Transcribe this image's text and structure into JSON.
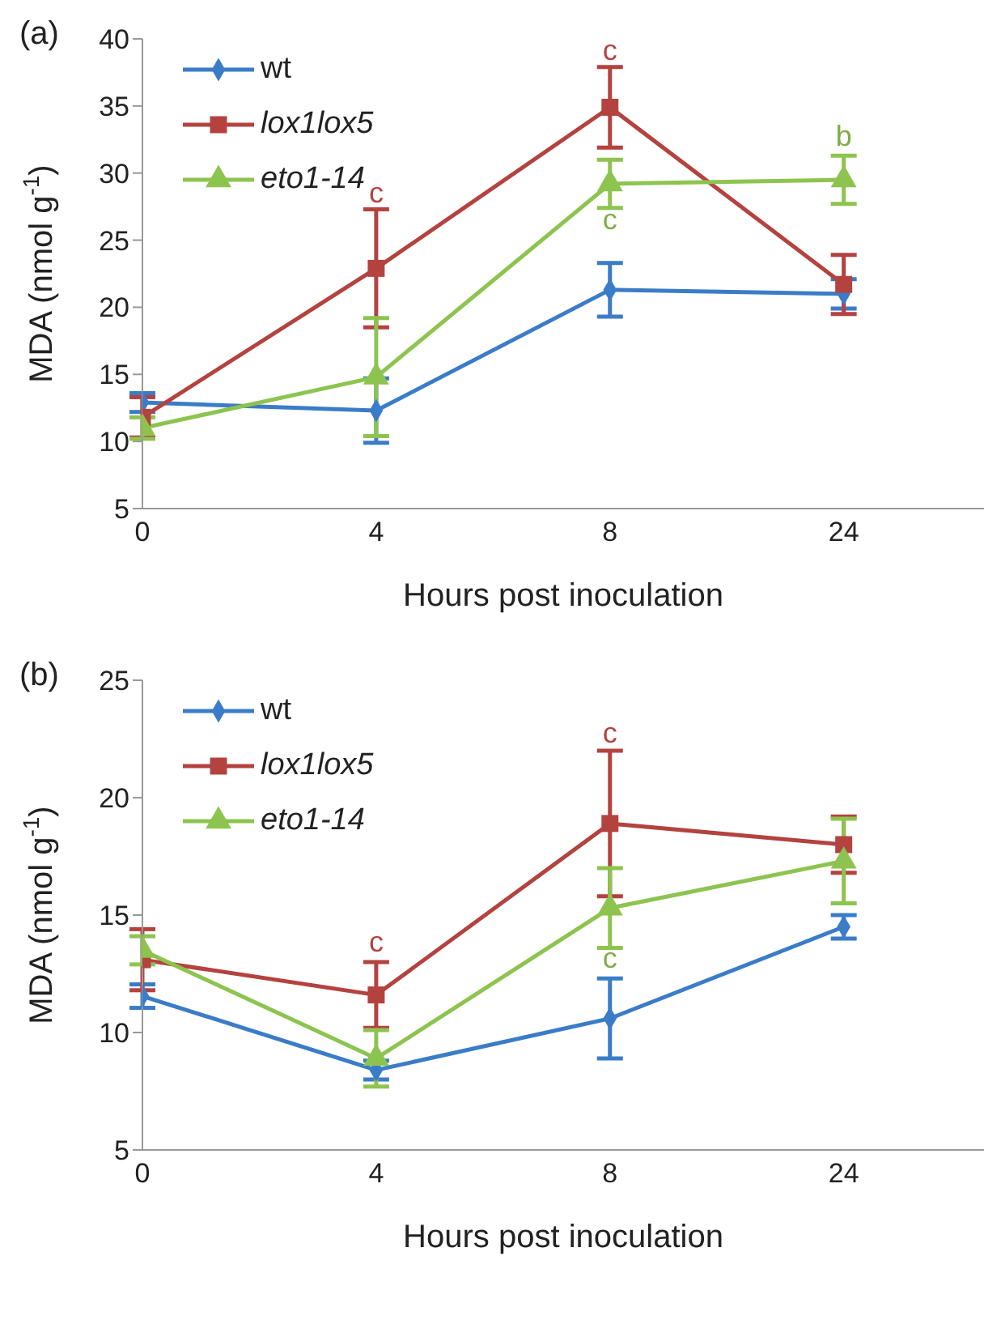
{
  "chart_data": [
    {
      "type": "line",
      "title": "(a)",
      "xlabel": "Hours post inoculation",
      "ylabel": "MDA (nmol g$^{-1}$)",
      "categories": [
        "0",
        "4",
        "8",
        "24"
      ],
      "ylim": [
        5,
        40
      ],
      "yticks": [
        5,
        10,
        15,
        20,
        25,
        30,
        35,
        40
      ],
      "grid": false,
      "legend": "top left",
      "series": [
        {
          "name": "wt",
          "color": "#3b7cc8",
          "marker": "diamond",
          "values": [
            12.9,
            12.3,
            21.3,
            21.0
          ],
          "errors": [
            0.7,
            2.4,
            2.0,
            1.1
          ]
        },
        {
          "name": "lox1lox5",
          "color": "#b4423f",
          "marker": "square",
          "values": [
            11.8,
            22.9,
            34.9,
            21.7
          ],
          "errors": [
            1.5,
            4.4,
            3.0,
            2.2
          ]
        },
        {
          "name": "eto1-14",
          "color": "#8dc44f",
          "marker": "triangle",
          "values": [
            11.0,
            14.8,
            29.2,
            29.5
          ],
          "errors": [
            0.8,
            4.4,
            1.8,
            1.8
          ]
        }
      ],
      "annotations": [
        "c",
        "c",
        "c",
        "b"
      ]
    },
    {
      "type": "line",
      "title": "(b)",
      "xlabel": "Hours post inoculation",
      "ylabel": "MDA (nmol g$^{-1}$)",
      "categories": [
        "0",
        "4",
        "8",
        "24"
      ],
      "ylim": [
        5,
        25
      ],
      "yticks": [
        5,
        10,
        15,
        20,
        25
      ],
      "grid": false,
      "legend": "top left",
      "series": [
        {
          "name": "wt",
          "color": "#3b7cc8",
          "marker": "diamond",
          "values": [
            11.55,
            8.4,
            10.6,
            14.5
          ],
          "errors": [
            0.5,
            0.4,
            1.7,
            0.5
          ]
        },
        {
          "name": "lox1lox5",
          "color": "#b4423f",
          "marker": "square",
          "values": [
            13.1,
            11.6,
            18.9,
            18.0
          ],
          "errors": [
            1.3,
            1.4,
            3.1,
            1.2
          ]
        },
        {
          "name": "eto1-14",
          "color": "#8dc44f",
          "marker": "triangle",
          "values": [
            13.5,
            8.9,
            15.3,
            17.3
          ],
          "errors": [
            0.6,
            1.2,
            1.7,
            1.8
          ]
        }
      ],
      "annotations": [
        "c",
        "c",
        "c"
      ]
    }
  ]
}
